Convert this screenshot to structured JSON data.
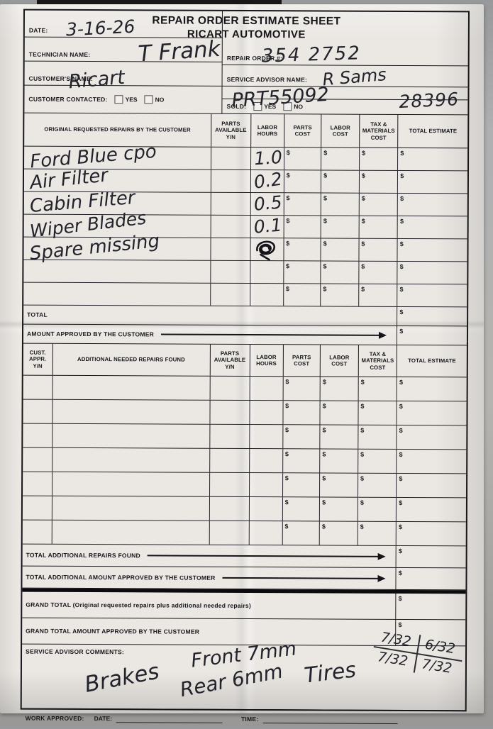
{
  "symbols": {
    "dollar": "$"
  },
  "meta": {
    "title_line1": "REPAIR ORDER ESTIMATE SHEET",
    "title_line2": "RICART AUTOMOTIVE"
  },
  "header": {
    "date_label": "DATE:",
    "date_value": "3-16-26",
    "technician_label": "TECHNICIAN NAME:",
    "technician_value": "T Frank",
    "customer_label": "CUSTOMER'S NAME:",
    "customer_value": "Ricart",
    "contacted_label": "CUSTOMER CONTACTED:",
    "yes_label": "YES",
    "no_label": "NO",
    "repair_order_label": "REPAIR ORDER #:",
    "repair_order_value": "354 2752",
    "advisor_label": "SERVICE ADVISOR NAME:",
    "advisor_value": "R Sams",
    "tag_value": "PRT55092",
    "sold_label": "SOLD:",
    "stock_value": "28396"
  },
  "table1": {
    "headers": [
      "ORIGINAL REQUESTED REPAIRS BY THE CUSTOMER",
      "PARTS AVAILABLE Y/N",
      "LABOR HOURS",
      "PARTS COST",
      "LABOR COST",
      "TAX & MATERIALS COST",
      "TOTAL ESTIMATE"
    ],
    "rows": [
      {
        "description": "Ford Blue cpo",
        "labor_hours": "1.0",
        "scribble": false
      },
      {
        "description": "Air Filter",
        "labor_hours": "0.2",
        "scribble": false
      },
      {
        "description": "Cabin Filter",
        "labor_hours": "0.5",
        "scribble": false
      },
      {
        "description": "Wiper Blades",
        "labor_hours": "0.1",
        "scribble": false
      },
      {
        "description": "Spare missing",
        "labor_hours": "",
        "scribble": true
      },
      {
        "description": "",
        "labor_hours": "",
        "scribble": false
      },
      {
        "description": "",
        "labor_hours": "",
        "scribble": false
      }
    ],
    "total_label": "TOTAL",
    "approved_label": "AMOUNT APPROVED BY THE CUSTOMER"
  },
  "table2": {
    "headers": [
      "CUST. APPR. Y/N",
      "ADDITIONAL NEEDED REPAIRS FOUND",
      "PARTS AVAILABLE Y/N",
      "LABOR HOURS",
      "PARTS COST",
      "LABOR COST",
      "TAX & MATERIALS COST",
      "TOTAL ESTIMATE"
    ],
    "empty_row_count": 7,
    "total_additional_label": "TOTAL ADDITIONAL REPAIRS FOUND",
    "total_additional_approved_label": "TOTAL ADDITIONAL AMOUNT APPROVED BY THE CUSTOMER"
  },
  "grand": {
    "total_label": "GRAND TOTAL (Original requested repairs plus additional needed repairs)",
    "approved_label": "GRAND TOTAL AMOUNT APPROVED BY THE CUSTOMER"
  },
  "comments": {
    "label": "SERVICE ADVISOR COMMENTS:",
    "brakes": "Brakes",
    "front": "Front 7mm",
    "rear": "Rear 6mm",
    "tires": "Tires",
    "treads": [
      "7/32",
      "6/32",
      "7/32",
      "7/32"
    ]
  },
  "footer": {
    "work_approved_label": "WORK APPROVED:",
    "date_label": "DATE:",
    "time_label": "TIME:"
  }
}
